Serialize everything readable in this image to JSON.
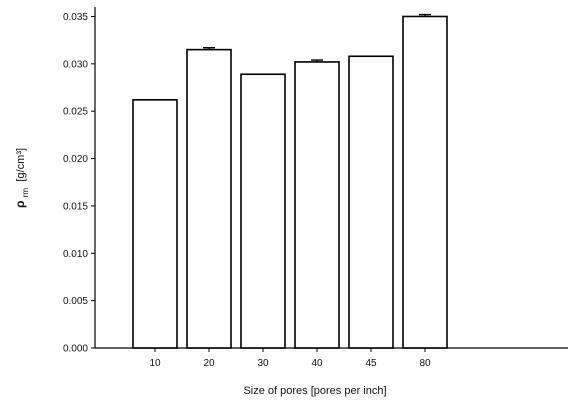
{
  "chart_data": {
    "type": "bar",
    "categories": [
      "10",
      "20",
      "30",
      "40",
      "45",
      "80"
    ],
    "values": [
      0.0262,
      0.0315,
      0.0289,
      0.0302,
      0.0308,
      0.035
    ],
    "errors": [
      0.0,
      0.0002,
      0.0,
      0.0002,
      0.0,
      0.0002
    ],
    "ylim": [
      0.0,
      0.036
    ],
    "yticks": [
      "0.000",
      "0.005",
      "0.010",
      "0.015",
      "0.020",
      "0.025",
      "0.030",
      "0.035"
    ],
    "ylabel_symbol": "ρ",
    "ylabel_subscript": "rm",
    "ylabel_unit": "[g/cm³]",
    "xlabel": "Size of pores [pores per inch]",
    "bar_color": "#ffffff",
    "bar_stroke": "#000000",
    "grid": false
  }
}
